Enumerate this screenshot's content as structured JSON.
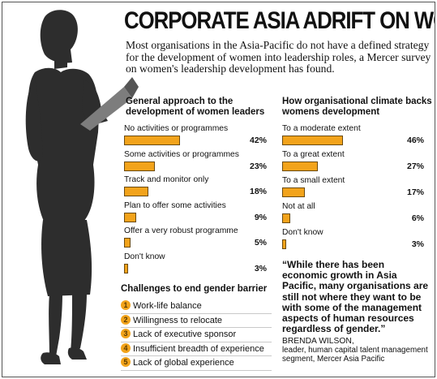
{
  "headline": "CORPORATE ASIA ADRIFT ON WOMEN",
  "intro": "Most organisations in the Asia-Pacific do not have a defined strategy for the development of women into leadership roles, a Mercer survey on women's leadership development has found.",
  "colors": {
    "bar": "#f2a31b",
    "silhouette": "#2d2d2d"
  },
  "chart_data": [
    {
      "type": "bar",
      "orientation": "horizontal",
      "title": "General approach to the development of women leaders",
      "xlim": [
        0,
        50
      ],
      "categories": [
        "No activities or programmes",
        "Some  activities or programmes",
        "Track and monitor only",
        "Plan to offer some activities",
        "Offer a very robust programme",
        "Don't know"
      ],
      "values": [
        42,
        23,
        18,
        9,
        5,
        3
      ],
      "value_labels": [
        "42%",
        "23%",
        "18%",
        "9%",
        "5%",
        "3%"
      ]
    },
    {
      "type": "bar",
      "orientation": "horizontal",
      "title": "How organisational climate backs womens development",
      "xlim": [
        0,
        50
      ],
      "categories": [
        "To a moderate extent",
        "To a great extent",
        "To a small extent",
        "Not at all",
        "Don't know"
      ],
      "values": [
        46,
        27,
        17,
        6,
        3
      ],
      "value_labels": [
        "46%",
        "27%",
        "17%",
        "6%",
        "3%"
      ]
    }
  ],
  "challenges": {
    "title": "Challenges to end gender barrier",
    "items": [
      {
        "num": "1",
        "label": "Work-life balance"
      },
      {
        "num": "2",
        "label": "Willingness to relocate"
      },
      {
        "num": "3",
        "label": "Lack of executive sponsor"
      },
      {
        "num": "4",
        "label": "Insufficient breadth of experience"
      },
      {
        "num": "5",
        "label": "Lack of global experience"
      }
    ]
  },
  "quote": {
    "text": "“While there has been economic growth in Asia Pacific, many organisations are still not where they want to be with some of the management aspects of human resources regardless of gender.”",
    "name": "BRENDA WILSON,",
    "role": "leader, human capital talent management segment, Mercer Asia Pacific"
  }
}
